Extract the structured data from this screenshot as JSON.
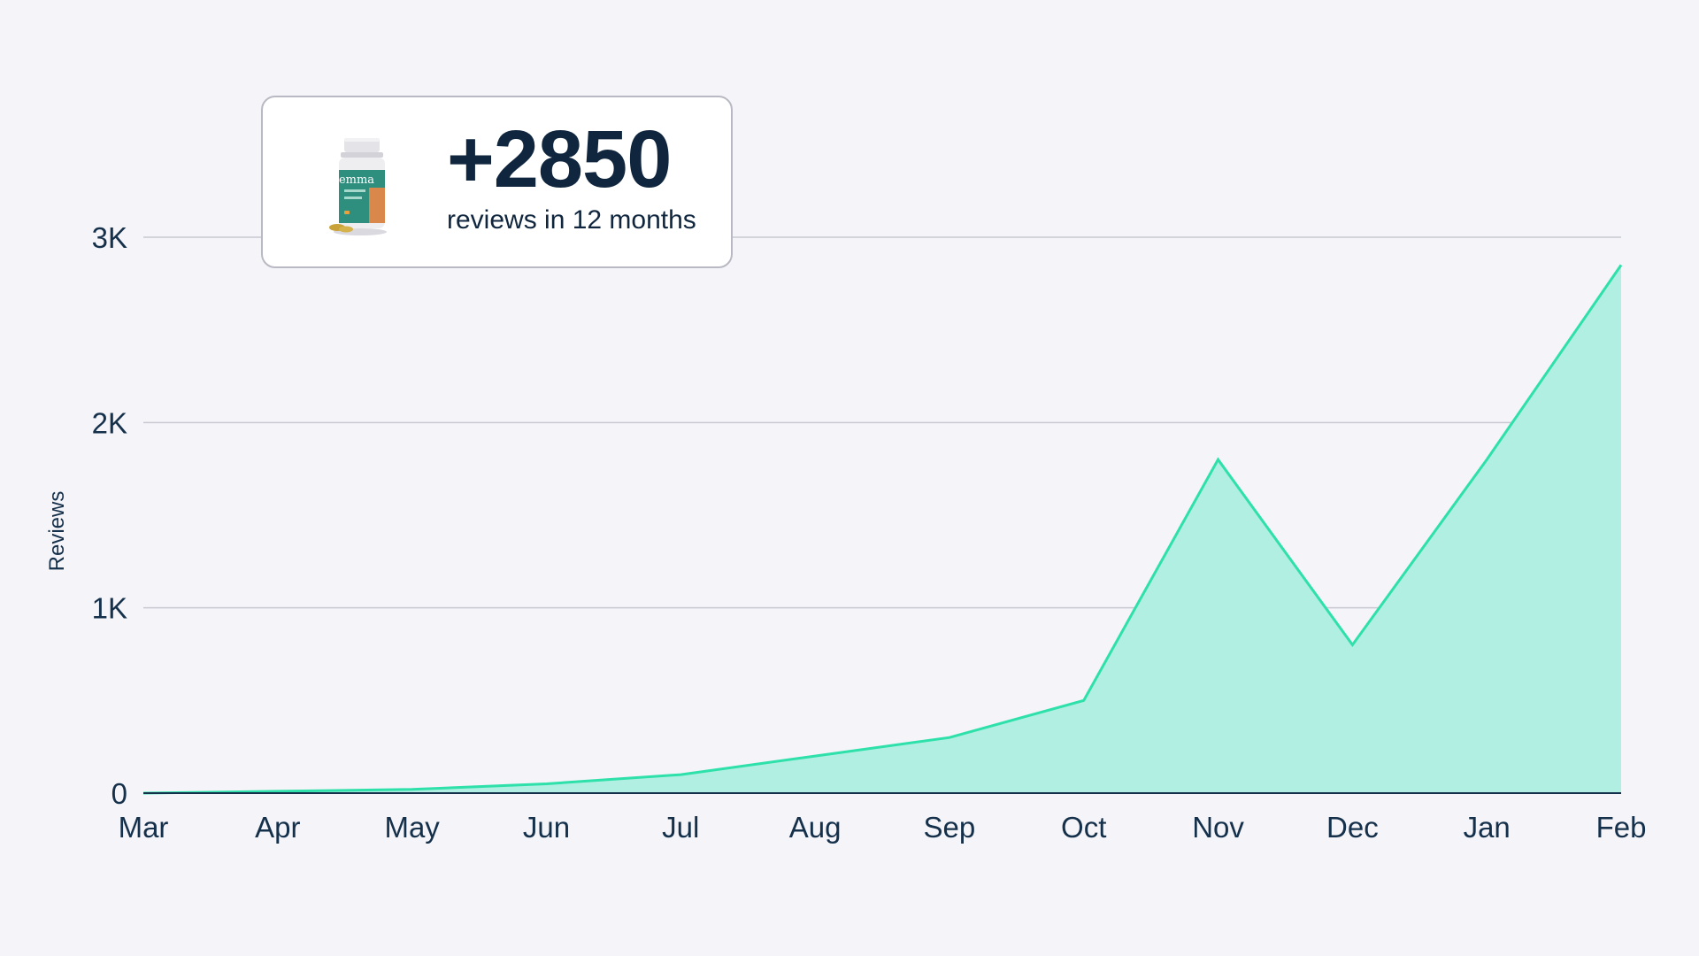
{
  "chart_data": {
    "type": "area",
    "title": "",
    "xlabel": "",
    "ylabel": "Reviews",
    "categories": [
      "Mar",
      "Apr",
      "May",
      "Jun",
      "Jul",
      "Aug",
      "Sep",
      "Oct",
      "Nov",
      "Dec",
      "Jan",
      "Feb"
    ],
    "values": [
      0,
      10,
      20,
      50,
      100,
      200,
      300,
      500,
      1800,
      800,
      1800,
      2850
    ],
    "ylim": [
      0,
      3000
    ],
    "y_ticks": [
      0,
      1000,
      2000,
      3000
    ],
    "y_tick_labels": [
      "0",
      "1K",
      "2K",
      "3K"
    ],
    "grid": "horizontal",
    "line_color": "#2ee0a9",
    "fill_color": "#b0efe2"
  },
  "callout": {
    "headline": "+2850",
    "caption": "reviews in 12 months",
    "product_label": "emma",
    "icon": "supplement-bottle-icon"
  },
  "colors": {
    "background": "#f4f4f9",
    "text": "#10263e"
  }
}
